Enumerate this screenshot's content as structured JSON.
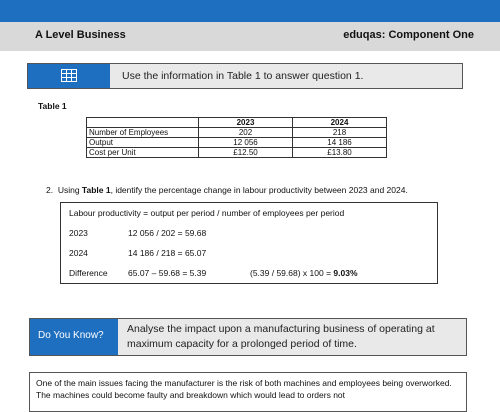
{
  "header": {
    "left_title": "A Level Business",
    "right_title": "eduqas: Component One"
  },
  "instruction": {
    "icon": "table-grid-icon",
    "text": "Use the information in Table 1 to answer question 1."
  },
  "table": {
    "label": "Table 1",
    "headers": [
      "",
      "2023",
      "2024"
    ],
    "rows": [
      [
        "Number of Employees",
        "202",
        "218"
      ],
      [
        "Output",
        "12 056",
        "14 186"
      ],
      [
        "Cost per Unit",
        "£12.50",
        "£13.80"
      ]
    ]
  },
  "question": {
    "number": "2.",
    "prefix": "Using ",
    "bold": "Table 1",
    "suffix": ", identify the percentage change in labour productivity between 2023 and 2024."
  },
  "answer": {
    "formula": "Labour productivity = output per period / number of employees per period",
    "lines": [
      {
        "label": "2023",
        "value": "12 056 / 202 = 59.68"
      },
      {
        "label": "2024",
        "value": "14 186 / 218 = 65.07"
      },
      {
        "label": "Difference",
        "value": "65.07 – 59.68 = 5.39"
      }
    ],
    "percent_calc": "(5.39 / 59.68) x 100 = ",
    "percent_result": "9.03%"
  },
  "did_you_know": {
    "tag": "Do You Know?",
    "text": "Analyse the impact upon a manufacturing business of operating at maximum capacity for a prolonged period of time."
  },
  "bottom_text": "One of the main issues facing the manufacturer is the risk of both machines and employees being overworked. The machines could become faulty and breakdown which would lead to orders not",
  "colors": {
    "accent": "#1f6fc1",
    "header_bg": "#d9d9d9",
    "panel_bg": "#e9e9e9"
  }
}
